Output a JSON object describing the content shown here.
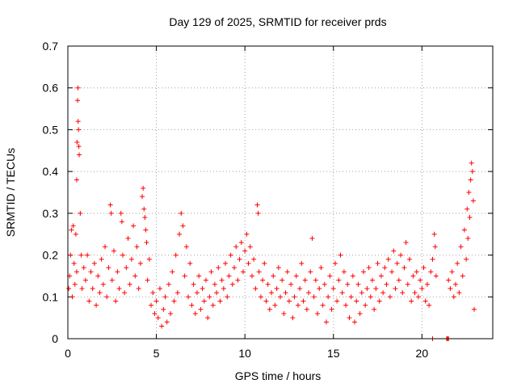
{
  "chart_data": {
    "type": "scatter",
    "title": "Day 129 of 2025, SRMTID for receiver prds",
    "xlabel": "GPS time / hours",
    "ylabel": "SRMTID / TECUs",
    "xlim": [
      0,
      24
    ],
    "ylim": [
      0,
      0.7
    ],
    "xticks": [
      0,
      5,
      10,
      15,
      20
    ],
    "yticks": [
      0,
      0.1,
      0.2,
      0.3,
      0.4,
      0.5,
      0.6,
      0.7
    ],
    "grid": true,
    "marker": "+",
    "series": [
      {
        "name": "SRMTID",
        "color": "#ff0000",
        "points": [
          [
            0.05,
            0.12
          ],
          [
            0.1,
            0.15
          ],
          [
            0.15,
            0.2
          ],
          [
            0.2,
            0.26
          ],
          [
            0.25,
            0.1
          ],
          [
            0.3,
            0.27
          ],
          [
            0.35,
            0.18
          ],
          [
            0.4,
            0.13
          ],
          [
            0.45,
            0.25
          ],
          [
            0.5,
            0.16
          ],
          [
            0.5,
            0.38
          ],
          [
            0.52,
            0.47
          ],
          [
            0.55,
            0.57
          ],
          [
            0.57,
            0.6
          ],
          [
            0.58,
            0.52
          ],
          [
            0.6,
            0.5
          ],
          [
            0.62,
            0.46
          ],
          [
            0.64,
            0.44
          ],
          [
            0.7,
            0.3
          ],
          [
            0.75,
            0.2
          ],
          [
            0.8,
            0.12
          ],
          [
            0.9,
            0.17
          ],
          [
            1.0,
            0.14
          ],
          [
            1.1,
            0.2
          ],
          [
            1.2,
            0.09
          ],
          [
            1.3,
            0.16
          ],
          [
            1.4,
            0.12
          ],
          [
            1.5,
            0.18
          ],
          [
            1.6,
            0.08
          ],
          [
            1.7,
            0.15
          ],
          [
            1.8,
            0.11
          ],
          [
            1.9,
            0.19
          ],
          [
            2.0,
            0.13
          ],
          [
            2.1,
            0.22
          ],
          [
            2.2,
            0.1
          ],
          [
            2.3,
            0.17
          ],
          [
            2.4,
            0.32
          ],
          [
            2.45,
            0.3
          ],
          [
            2.5,
            0.14
          ],
          [
            2.6,
            0.21
          ],
          [
            2.7,
            0.09
          ],
          [
            2.8,
            0.16
          ],
          [
            2.9,
            0.12
          ],
          [
            3.0,
            0.3
          ],
          [
            3.05,
            0.28
          ],
          [
            3.1,
            0.2
          ],
          [
            3.2,
            0.11
          ],
          [
            3.3,
            0.17
          ],
          [
            3.4,
            0.24
          ],
          [
            3.5,
            0.13
          ],
          [
            3.6,
            0.19
          ],
          [
            3.7,
            0.27
          ],
          [
            3.8,
            0.15
          ],
          [
            3.9,
            0.22
          ],
          [
            4.0,
            0.12
          ],
          [
            4.1,
            0.18
          ],
          [
            4.2,
            0.34
          ],
          [
            4.25,
            0.36
          ],
          [
            4.3,
            0.31
          ],
          [
            4.35,
            0.29
          ],
          [
            4.4,
            0.26
          ],
          [
            4.45,
            0.23
          ],
          [
            4.5,
            0.14
          ],
          [
            4.6,
            0.19
          ],
          [
            4.7,
            0.08
          ],
          [
            4.8,
            0.11
          ],
          [
            4.9,
            0.06
          ],
          [
            5.0,
            0.09
          ],
          [
            5.1,
            0.05
          ],
          [
            5.2,
            0.12
          ],
          [
            5.3,
            0.03
          ],
          [
            5.4,
            0.07
          ],
          [
            5.5,
            0.1
          ],
          [
            5.6,
            0.04
          ],
          [
            5.7,
            0.13
          ],
          [
            5.8,
            0.06
          ],
          [
            5.9,
            0.16
          ],
          [
            6.0,
            0.09
          ],
          [
            6.1,
            0.2
          ],
          [
            6.2,
            0.11
          ],
          [
            6.3,
            0.25
          ],
          [
            6.4,
            0.3
          ],
          [
            6.5,
            0.27
          ],
          [
            6.6,
            0.15
          ],
          [
            6.7,
            0.22
          ],
          [
            6.8,
            0.1
          ],
          [
            6.9,
            0.18
          ],
          [
            7.0,
            0.08
          ],
          [
            7.1,
            0.13
          ],
          [
            7.2,
            0.06
          ],
          [
            7.3,
            0.11
          ],
          [
            7.4,
            0.15
          ],
          [
            7.5,
            0.07
          ],
          [
            7.6,
            0.12
          ],
          [
            7.7,
            0.09
          ],
          [
            7.8,
            0.14
          ],
          [
            7.9,
            0.05
          ],
          [
            8.0,
            0.1
          ],
          [
            8.1,
            0.16
          ],
          [
            8.2,
            0.08
          ],
          [
            8.3,
            0.13
          ],
          [
            8.4,
            0.11
          ],
          [
            8.5,
            0.17
          ],
          [
            8.6,
            0.09
          ],
          [
            8.7,
            0.14
          ],
          [
            8.8,
            0.12
          ],
          [
            8.9,
            0.18
          ],
          [
            9.0,
            0.1
          ],
          [
            9.1,
            0.15
          ],
          [
            9.2,
            0.2
          ],
          [
            9.3,
            0.13
          ],
          [
            9.4,
            0.17
          ],
          [
            9.5,
            0.22
          ],
          [
            9.6,
            0.14
          ],
          [
            9.7,
            0.19
          ],
          [
            9.8,
            0.23
          ],
          [
            9.9,
            0.16
          ],
          [
            10.0,
            0.21
          ],
          [
            10.1,
            0.25
          ],
          [
            10.2,
            0.18
          ],
          [
            10.3,
            0.22
          ],
          [
            10.4,
            0.15
          ],
          [
            10.5,
            0.19
          ],
          [
            10.6,
            0.12
          ],
          [
            10.7,
            0.32
          ],
          [
            10.75,
            0.3
          ],
          [
            10.8,
            0.16
          ],
          [
            10.9,
            0.1
          ],
          [
            11.0,
            0.14
          ],
          [
            11.1,
            0.18
          ],
          [
            11.2,
            0.09
          ],
          [
            11.3,
            0.13
          ],
          [
            11.4,
            0.07
          ],
          [
            11.5,
            0.11
          ],
          [
            11.6,
            0.15
          ],
          [
            11.7,
            0.08
          ],
          [
            11.8,
            0.12
          ],
          [
            11.9,
            0.17
          ],
          [
            12.0,
            0.1
          ],
          [
            12.1,
            0.14
          ],
          [
            12.2,
            0.06
          ],
          [
            12.3,
            0.11
          ],
          [
            12.4,
            0.16
          ],
          [
            12.5,
            0.09
          ],
          [
            12.6,
            0.13
          ],
          [
            12.7,
            0.05
          ],
          [
            12.8,
            0.1
          ],
          [
            12.9,
            0.15
          ],
          [
            13.0,
            0.08
          ],
          [
            13.1,
            0.12
          ],
          [
            13.2,
            0.18
          ],
          [
            13.3,
            0.09
          ],
          [
            13.4,
            0.14
          ],
          [
            13.5,
            0.07
          ],
          [
            13.6,
            0.11
          ],
          [
            13.7,
            0.16
          ],
          [
            13.8,
            0.24
          ],
          [
            13.9,
            0.1
          ],
          [
            14.0,
            0.14
          ],
          [
            14.1,
            0.06
          ],
          [
            14.2,
            0.12
          ],
          [
            14.3,
            0.17
          ],
          [
            14.4,
            0.08
          ],
          [
            14.5,
            0.13
          ],
          [
            14.6,
            0.04
          ],
          [
            14.7,
            0.1
          ],
          [
            14.8,
            0.15
          ],
          [
            14.9,
            0.07
          ],
          [
            15.0,
            0.12
          ],
          [
            15.1,
            0.18
          ],
          [
            15.2,
            0.09
          ],
          [
            15.3,
            0.14
          ],
          [
            15.4,
            0.2
          ],
          [
            15.5,
            0.11
          ],
          [
            15.6,
            0.16
          ],
          [
            15.7,
            0.08
          ],
          [
            15.8,
            0.13
          ],
          [
            15.9,
            0.05
          ],
          [
            16.0,
            0.1
          ],
          [
            16.1,
            0.15
          ],
          [
            16.2,
            0.04
          ],
          [
            16.3,
            0.09
          ],
          [
            16.4,
            0.13
          ],
          [
            16.5,
            0.06
          ],
          [
            16.6,
            0.11
          ],
          [
            16.7,
            0.16
          ],
          [
            16.8,
            0.08
          ],
          [
            16.9,
            0.12
          ],
          [
            17.0,
            0.17
          ],
          [
            17.1,
            0.1
          ],
          [
            17.2,
            0.14
          ],
          [
            17.3,
            0.07
          ],
          [
            17.4,
            0.12
          ],
          [
            17.5,
            0.18
          ],
          [
            17.6,
            0.09
          ],
          [
            17.7,
            0.15
          ],
          [
            17.8,
            0.11
          ],
          [
            17.9,
            0.17
          ],
          [
            18.0,
            0.13
          ],
          [
            18.1,
            0.19
          ],
          [
            18.2,
            0.1
          ],
          [
            18.3,
            0.16
          ],
          [
            18.4,
            0.21
          ],
          [
            18.5,
            0.12
          ],
          [
            18.6,
            0.18
          ],
          [
            18.7,
            0.14
          ],
          [
            18.8,
            0.2
          ],
          [
            18.9,
            0.11
          ],
          [
            19.0,
            0.17
          ],
          [
            19.1,
            0.23
          ],
          [
            19.2,
            0.13
          ],
          [
            19.3,
            0.19
          ],
          [
            19.4,
            0.09
          ],
          [
            19.5,
            0.15
          ],
          [
            19.6,
            0.11
          ],
          [
            19.7,
            0.16
          ],
          [
            19.8,
            0.1
          ],
          [
            19.9,
            0.14
          ],
          [
            20.0,
            0.12
          ],
          [
            20.1,
            0.17
          ],
          [
            20.2,
            0.09
          ],
          [
            20.3,
            0.13
          ],
          [
            20.4,
            0.08
          ],
          [
            20.5,
            0.16
          ],
          [
            20.6,
            0.19
          ],
          [
            20.7,
            0.25
          ],
          [
            20.75,
            0.22
          ],
          [
            20.8,
            0.15
          ],
          [
            21.5,
            0.14
          ],
          [
            21.6,
            0.12
          ],
          [
            21.7,
            0.16
          ],
          [
            21.8,
            0.1
          ],
          [
            21.9,
            0.13
          ],
          [
            22.0,
            0.18
          ],
          [
            22.1,
            0.11
          ],
          [
            22.2,
            0.22
          ],
          [
            22.3,
            0.15
          ],
          [
            22.4,
            0.26
          ],
          [
            22.5,
            0.19
          ],
          [
            22.55,
            0.31
          ],
          [
            22.6,
            0.24
          ],
          [
            22.65,
            0.35
          ],
          [
            22.7,
            0.29
          ],
          [
            22.75,
            0.38
          ],
          [
            22.8,
            0.42
          ],
          [
            22.85,
            0.4
          ],
          [
            22.9,
            0.33
          ],
          [
            22.95,
            0.07
          ],
          [
            20.6,
            0.0
          ],
          [
            21.4,
            0.0
          ],
          [
            21.45,
            0.0
          ],
          [
            21.5,
            0.0
          ]
        ]
      }
    ]
  }
}
